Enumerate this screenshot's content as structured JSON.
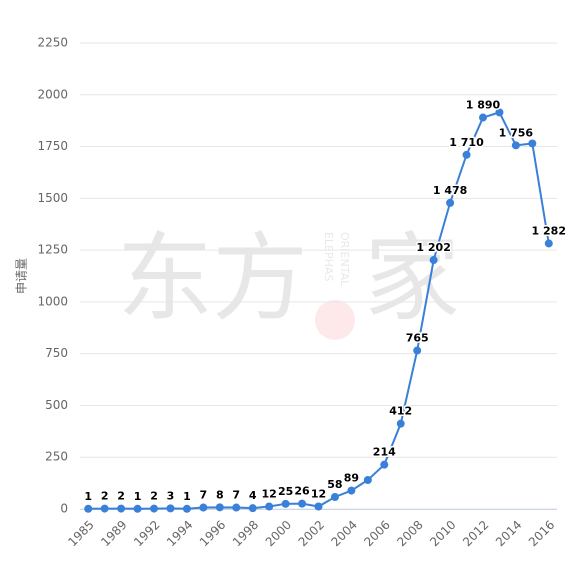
{
  "chart_data": {
    "type": "line",
    "y_label": "申请量",
    "categories": [
      "1985",
      null,
      "1989",
      null,
      "1992",
      null,
      "1994",
      null,
      "1996",
      null,
      "1998",
      null,
      "2000",
      null,
      "2002",
      null,
      "2004",
      null,
      "2006",
      null,
      "2008",
      null,
      "2010",
      null,
      "2012",
      null,
      "2014",
      null,
      "2016"
    ],
    "series": [
      {
        "color": "#3a80d8",
        "values": [
          1,
          2,
          2,
          1,
          2,
          3,
          1,
          7,
          8,
          7,
          4,
          12,
          25,
          26,
          12,
          58,
          89,
          140,
          214,
          412,
          765,
          1202,
          1478,
          1710,
          1890,
          1915,
          1756,
          1765,
          1282
        ],
        "value_labels": [
          "1",
          "2",
          "2",
          "1",
          "2",
          "3",
          "1",
          "7",
          "8",
          "7",
          "4",
          "12",
          "25",
          "26",
          "12",
          "58",
          "89",
          null,
          "214",
          "412",
          "765",
          "1 202",
          "1 478",
          "1 710",
          "1 890",
          null,
          "1 756",
          null,
          "1 282"
        ]
      }
    ],
    "ylim": [
      0,
      2250
    ],
    "yticks": [
      0,
      250,
      500,
      750,
      1000,
      1250,
      1500,
      1750,
      2000,
      2250
    ],
    "grid": true,
    "watermark": {
      "chars": [
        "东",
        "方",
        "家"
      ],
      "sub": [
        "ORIENTAL",
        "ELEPHAS"
      ]
    }
  }
}
